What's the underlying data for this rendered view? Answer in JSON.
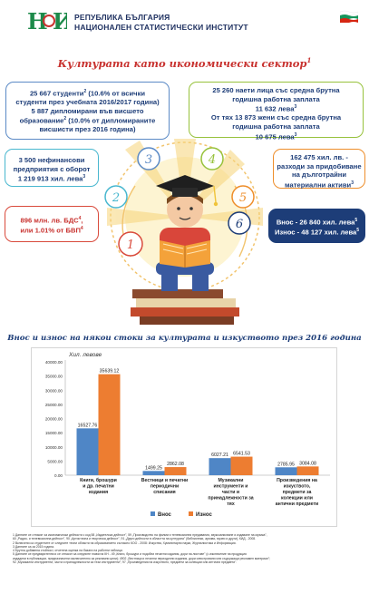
{
  "header": {
    "line1": "РЕПУБЛИКА БЪЛГАРИЯ",
    "line2": "НАЦИОНАЛЕН СТАТИСТИЧЕСКИ ИНСТИТУТ"
  },
  "title": "Културата като икономически сектор",
  "title_sup": "1",
  "numbers": [
    "1",
    "2",
    "3",
    "4",
    "5",
    "6"
  ],
  "boxes": {
    "b1": {
      "line1": "25 667 студенти",
      "line1_sup": "2",
      "line1_tail": " (10.6% от всички",
      "line2": "студенти през учебната 2016/2017 година)",
      "line3": "5 887 дипломирани във висшето",
      "line4": "образование",
      "line4_sup": "2",
      "line4_tail": " (10.0% от дипломираните",
      "line5": "висшисти през 2016 година)"
    },
    "b4": {
      "line1": "25 260 наети лица със средна брутна",
      "line2": "годишна работна заплата",
      "line3": "11 632 лева",
      "line3_sup": "3",
      "line4": "От тях 13 873 жени със средна брутна",
      "line5": "годишна работна заплата",
      "line6": "10 675 лева",
      "line6_sup": "3"
    },
    "b2": {
      "line1": "3 500 нефинансови",
      "line2": "предприятия с оборот",
      "line3": "1 219 913 хил. лева",
      "line3_sup": "3"
    },
    "b5": {
      "line1": "162 475 хил. лв. -",
      "line2": "разходи за придобиване",
      "line3": "на дълготрайни",
      "line4": "материални активи",
      "line4_sup": "3"
    },
    "b1l": {
      "line1": "896 млн. лв. БДС",
      "line1_sup": "4",
      "line1_tail": ",",
      "line2": "или 1.01% от БВП",
      "line2_sup": "4"
    },
    "b6": {
      "line1": "Внос - 26 840 хил. лева",
      "line1_sup": "5",
      "line2": "Износ - 48 127 хил. лева",
      "line2_sup": "5"
    }
  },
  "chart_title": "Внос и износ на някои стоки за културата и изкуството през 2016 година",
  "colors": {
    "import": "#4f86c6",
    "export": "#ed7d31",
    "navy": "#1d3d78",
    "red": "#c8322f"
  },
  "chart_data": {
    "type": "bar",
    "ylabel": "Хил. левове",
    "ylim": [
      0,
      40000
    ],
    "yticks": [
      "0.00",
      "5000.00",
      "10000.00",
      "15000.00",
      "20000.00",
      "25000.00",
      "30000.00",
      "35000.00",
      "40000.00"
    ],
    "categories": [
      [
        "Книги, брошури",
        "и др. печатни",
        "издания"
      ],
      [
        "Вестници и печатни",
        "периодични",
        "списания"
      ],
      [
        "Музикални",
        "инструменти и",
        "части и",
        "принадлежности за",
        "тях"
      ],
      [
        "Произведения на",
        "изкуството,",
        "предмети за",
        "колекции или",
        "антични предмети"
      ]
    ],
    "series": [
      {
        "name": "Внос",
        "values": [
          16527.76,
          1499.25,
          6027.21,
          2785.95
        ],
        "labels": [
          "16527.76",
          "1499.25",
          "6027.21",
          "2785.95"
        ]
      },
      {
        "name": "Износ",
        "values": [
          35639.12,
          2862.08,
          6541.53,
          3084.08
        ],
        "labels": [
          "35639.12",
          "2862.08",
          "6541.53",
          "3084.08"
        ]
      }
    ],
    "legend_position": "bottom",
    "grid": false
  },
  "footnotes": [
    "1 Данните се отнасят за икономически дейности с код 58 „Издателска дейност\", 59 „Производство на филми и телевизионни предавания, звукозаписване и издаване на музика\",",
    "60 „Радио- и телевизионна дейност\", 90 „Артистична и творческа дейност\", 91 „Други дейности в областта на културата\" (библиотеки, архиви, музеи и други), КИД - 2008.",
    "2 Включени са студентите от следните тесни области на образованието съгласно КОО - 2008: Изкуства, Хуманитарни науки, Журналистика и Информация.",
    "3 Данните са за 2015 година.",
    "4 Брутна добавена стойност, отчетена оценка на базата на работни таблици.",
    "5 Данните се предварителни и се отнасят за следните глави на КН - 49 „Книги, брошури и подобни печатни издания, дори на листове\" (с изключение на продукция",
    "издадени в публикации, предназначени изключително за рекламни цели); 4902 „Вестници и печатни периодични издания, дори илюстровани или съдържащи рекламен материал\";",
    "92 „Музикални инструменти; части и принадлежности за тези инструменти\"; 97 „Произведения на изкуството, предмети за колекции или антични предмети\"."
  ]
}
